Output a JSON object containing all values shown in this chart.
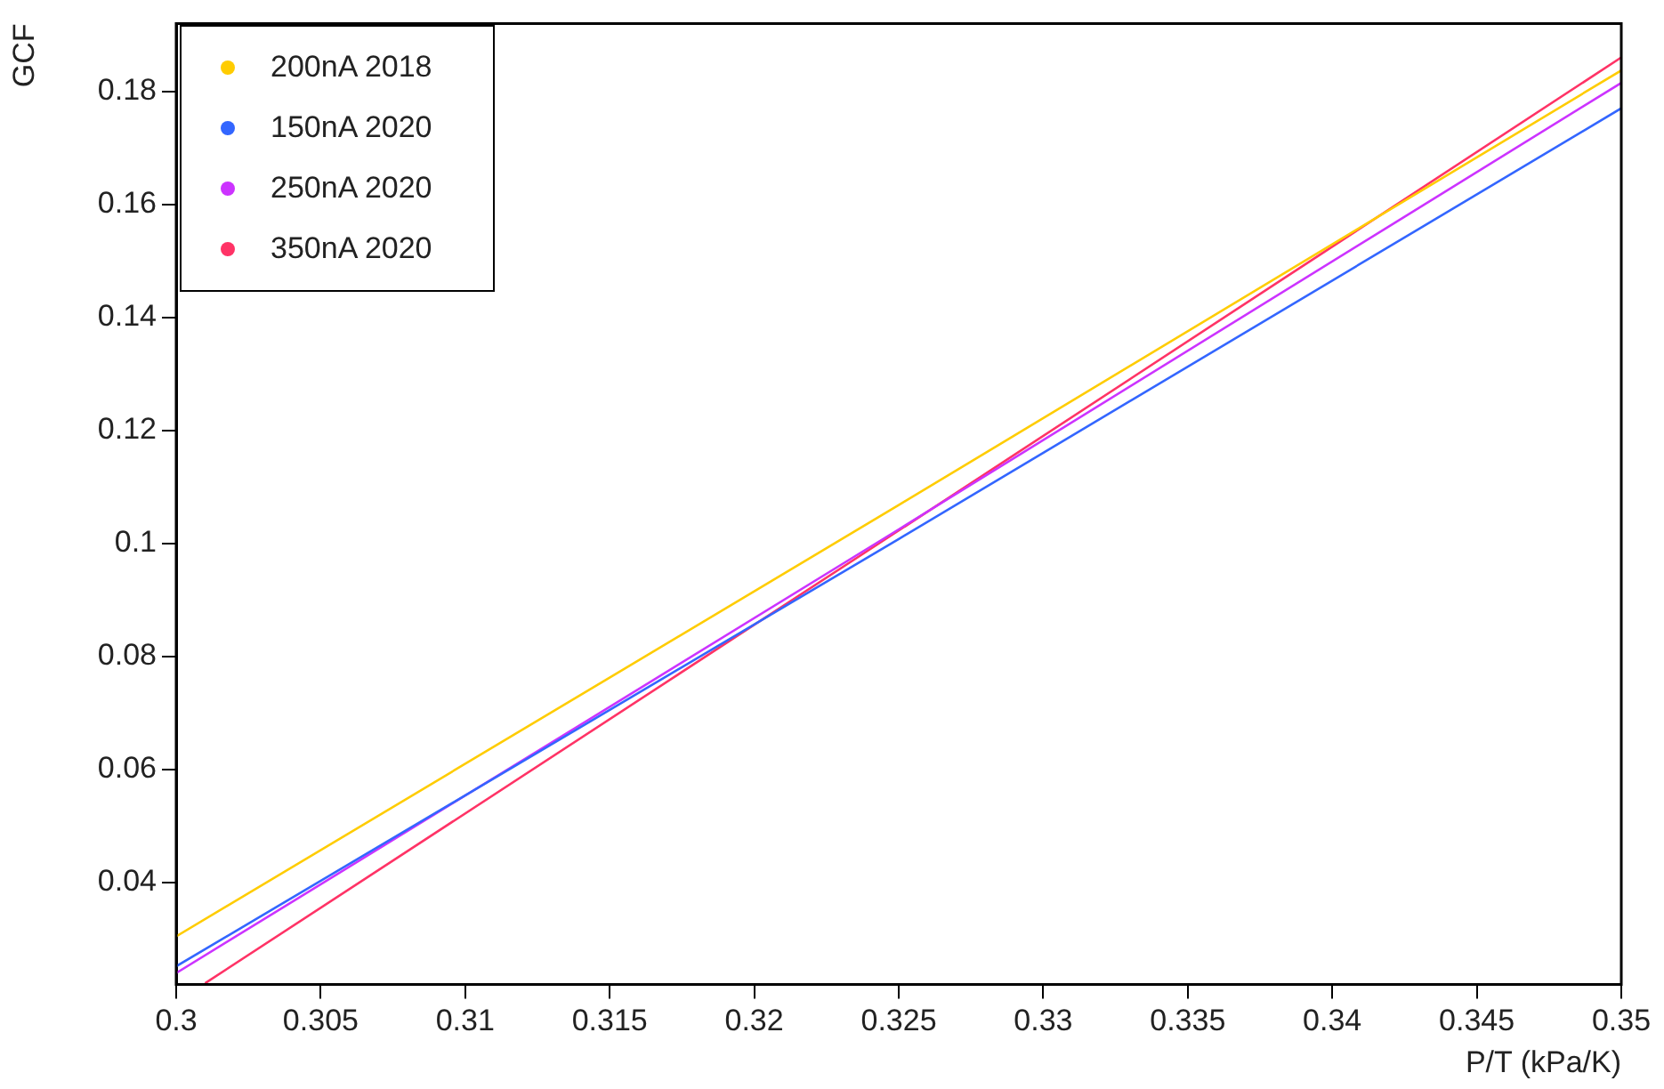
{
  "chart_data": {
    "type": "line",
    "xlabel": "P/T (kPa/K)",
    "ylabel": "GCF",
    "xlim": [
      0.3,
      0.35
    ],
    "xticks": [
      0.3,
      0.305,
      0.31,
      0.315,
      0.32,
      0.325,
      0.33,
      0.335,
      0.34,
      0.345,
      0.35
    ],
    "ylim": [
      0.022,
      0.192
    ],
    "yticks": [
      0.04,
      0.06,
      0.08,
      0.1,
      0.12,
      0.14,
      0.16,
      0.18
    ],
    "grid": false,
    "legend": "top left",
    "marker": "none",
    "line_style": "solid",
    "series": [
      {
        "name": "200nA 2018",
        "color": "#ffcc00",
        "x": [
          0.3,
          0.325,
          0.35
        ],
        "values": [
          0.0305,
          0.1068,
          0.1837
        ]
      },
      {
        "name": "150nA 2020",
        "color": "#3366ff",
        "x": [
          0.3,
          0.325,
          0.35
        ],
        "values": [
          0.0252,
          0.1008,
          0.177
        ]
      },
      {
        "name": "250nA 2020",
        "color": "#cc33ff",
        "x": [
          0.3,
          0.325,
          0.35
        ],
        "values": [
          0.024,
          0.1025,
          0.1815
        ]
      },
      {
        "name": "350nA 2020",
        "color": "#ff3366",
        "x": [
          0.301,
          0.325,
          0.35
        ],
        "values": [
          0.0222,
          0.1023,
          0.186
        ]
      }
    ]
  }
}
